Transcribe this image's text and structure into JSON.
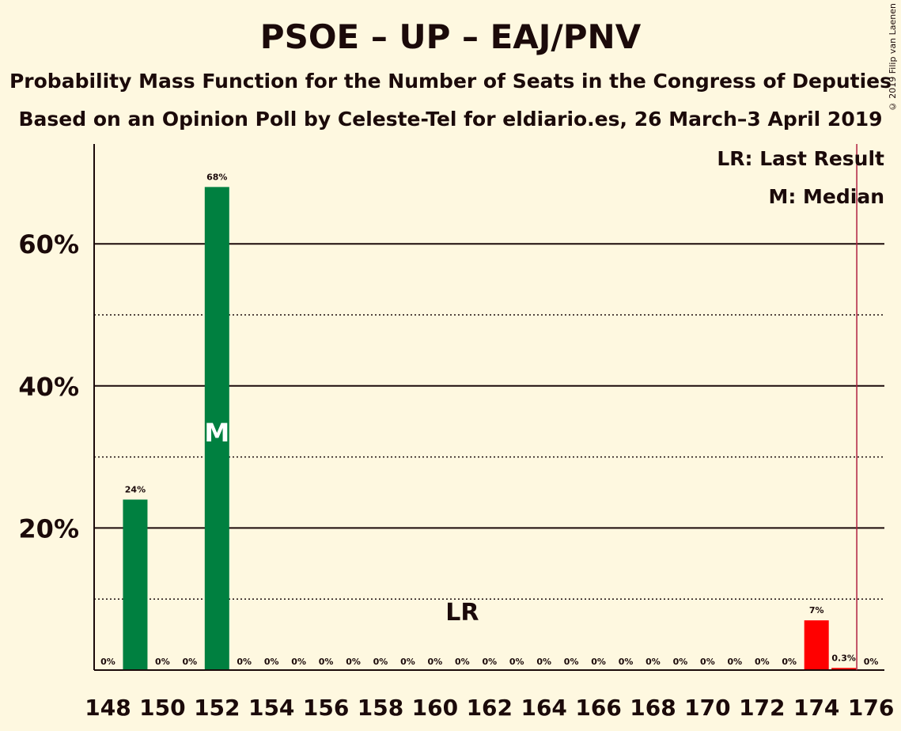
{
  "title": "PSOE – UP – EAJ/PNV",
  "subtitle1": "Probability Mass Function for the Number of Seats in the Congress of Deputies",
  "subtitle2": "Based on an Opinion Poll by Celeste-Tel for eldiario.es, 26 March–3 April 2019",
  "copyright": "© 2019 Filip van Laenen",
  "legend": {
    "lr": "LR: Last Result",
    "median": "M: Median"
  },
  "colors": {
    "green": "#008040",
    "red": "#ff0000",
    "majority_line": "#b02040",
    "background": "#fef8e0",
    "text": "#1b0a0a"
  },
  "chart_data": {
    "type": "bar",
    "x": [
      148,
      149,
      150,
      151,
      152,
      153,
      154,
      155,
      156,
      157,
      158,
      159,
      160,
      161,
      162,
      163,
      164,
      165,
      166,
      167,
      168,
      169,
      170,
      171,
      172,
      173,
      174,
      175,
      176
    ],
    "values": [
      0,
      24,
      0,
      0,
      68,
      0,
      0,
      0,
      0,
      0,
      0,
      0,
      0,
      0,
      0,
      0,
      0,
      0,
      0,
      0,
      0,
      0,
      0,
      0,
      0,
      0,
      7,
      0.3,
      0
    ],
    "value_labels": [
      "0%",
      "24%",
      "0%",
      "0%",
      "68%",
      "0%",
      "0%",
      "0%",
      "0%",
      "0%",
      "0%",
      "0%",
      "0%",
      "0%",
      "0%",
      "0%",
      "0%",
      "0%",
      "0%",
      "0%",
      "0%",
      "0%",
      "0%",
      "0%",
      "0%",
      "0%",
      "7%",
      "0.3%",
      "0%"
    ],
    "bar_colors": [
      "green",
      "green",
      "green",
      "green",
      "green",
      "green",
      "green",
      "green",
      "green",
      "green",
      "green",
      "green",
      "green",
      "green",
      "green",
      "green",
      "green",
      "green",
      "green",
      "green",
      "green",
      "green",
      "green",
      "green",
      "green",
      "green",
      "red",
      "red",
      "red"
    ],
    "x_ticks": [
      "148",
      "150",
      "152",
      "154",
      "156",
      "158",
      "160",
      "162",
      "164",
      "166",
      "168",
      "170",
      "172",
      "174",
      "176"
    ],
    "y_ticks": [
      "20%",
      "40%",
      "60%"
    ],
    "ylim": [
      0,
      74
    ],
    "gridlines_solid": [
      20,
      40,
      60
    ],
    "gridlines_dotted": [
      10,
      30,
      50
    ],
    "median_seat": 152,
    "median_marker": "M",
    "last_result_seat": 161,
    "last_result_marker": "LR",
    "majority_seat": 176
  }
}
